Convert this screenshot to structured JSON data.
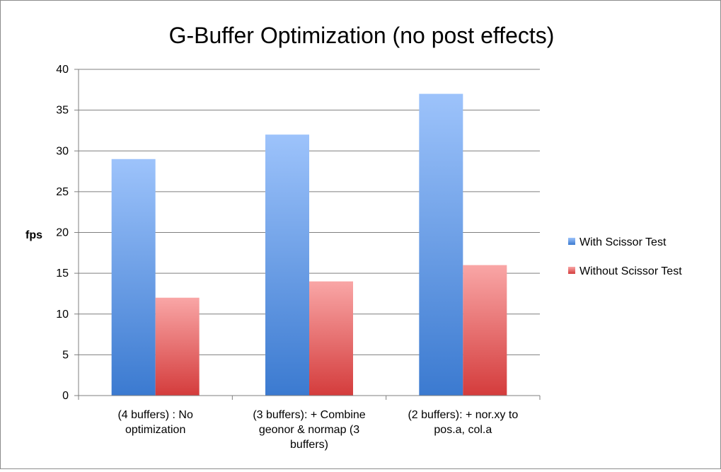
{
  "chart_data": {
    "type": "bar",
    "title": "G-Buffer Optimization (no post effects)",
    "xlabel": "",
    "ylabel": "fps",
    "ylim": [
      0,
      40
    ],
    "yticks": [
      0,
      5,
      10,
      15,
      20,
      25,
      30,
      35,
      40
    ],
    "grid": true,
    "legend_position": "right",
    "categories": [
      [
        "(4 buffers) : No",
        "optimization"
      ],
      [
        "(3 buffers): + Combine",
        "geonor & normap (3",
        "buffers)"
      ],
      [
        "(2 buffers): + nor.xy to",
        "pos.a, col.a"
      ]
    ],
    "series": [
      {
        "name": "With Scissor Test",
        "values": [
          29,
          32,
          37
        ],
        "color_top": "#9dc3fb",
        "color_bottom": "#3b7ad0"
      },
      {
        "name": "Without Scissor Test",
        "values": [
          12,
          14,
          16
        ],
        "color_top": "#f9a6a6",
        "color_bottom": "#d43c3c"
      }
    ]
  }
}
